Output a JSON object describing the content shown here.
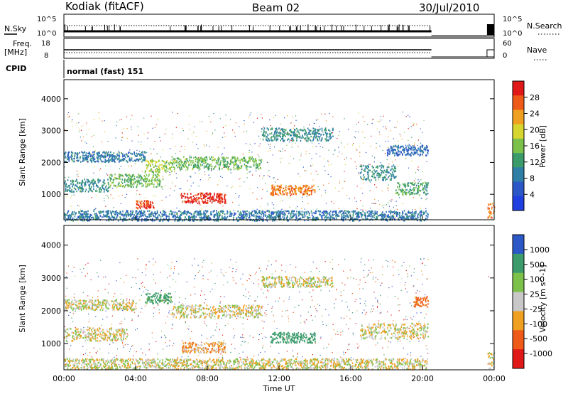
{
  "header": {
    "station": "Kodiak (fitACF)",
    "beam": "Beam 02",
    "date": "30/Jul/2010"
  },
  "top_panels": {
    "nsky_label": "N.Sky",
    "nsearch_label": "N.Search",
    "noise_ticks": [
      "10^5",
      "10^0"
    ],
    "noise_right_ticks": [
      "10^5",
      "10^0"
    ],
    "freq_label": "Freq.",
    "freq_unit": "[MHz]",
    "freq_ticks": [
      "18",
      "8"
    ],
    "nave_label": "Nave",
    "nave_ticks": [
      "60",
      "0"
    ],
    "cpid_label": "CPID",
    "cpid_text": "normal (fast) 151"
  },
  "chart_data": [
    {
      "type": "heatmap",
      "name": "power",
      "ylabel": "Slant Range [km]",
      "xlabel": "",
      "colorbar_label": "Power [dB]",
      "colorbar_ticks": [
        "28",
        "24",
        "20",
        "16",
        "12",
        "8",
        "4"
      ],
      "colorbar_range": [
        0,
        30
      ],
      "ylim": [
        200,
        4600
      ],
      "yticks": [
        "4000",
        "3000",
        "2000",
        "1000"
      ],
      "xlim_hours": [
        0,
        24
      ],
      "colors": [
        "#1f3fe0",
        "#2c57c7",
        "#2f7fa6",
        "#3b9b6b",
        "#7cc24a",
        "#d7d62e",
        "#f0a020",
        "#ef5a18",
        "#e01818"
      ],
      "echo_bands": [
        {
          "start_h": 0.0,
          "end_h": 2.5,
          "range_km": 1300,
          "width_km": 250,
          "value": 10
        },
        {
          "start_h": 2.5,
          "end_h": 5.5,
          "range_km": 1450,
          "width_km": 250,
          "value": 14
        },
        {
          "start_h": 0.0,
          "end_h": 4.5,
          "range_km": 2200,
          "width_km": 200,
          "value": 8
        },
        {
          "start_h": 4.5,
          "end_h": 6.0,
          "range_km": 1900,
          "width_km": 250,
          "value": 16
        },
        {
          "start_h": 6.0,
          "end_h": 11.0,
          "range_km": 2000,
          "width_km": 250,
          "value": 14
        },
        {
          "start_h": 11.0,
          "end_h": 15.0,
          "range_km": 2900,
          "width_km": 250,
          "value": 10
        },
        {
          "start_h": 4.0,
          "end_h": 5.0,
          "range_km": 700,
          "width_km": 150,
          "value": 26
        },
        {
          "start_h": 6.5,
          "end_h": 9.0,
          "range_km": 900,
          "width_km": 200,
          "value": 28
        },
        {
          "start_h": 11.5,
          "end_h": 14.0,
          "range_km": 1150,
          "width_km": 200,
          "value": 24
        },
        {
          "start_h": 16.5,
          "end_h": 18.5,
          "range_km": 1700,
          "width_km": 300,
          "value": 10
        },
        {
          "start_h": 18.5,
          "end_h": 20.3,
          "range_km": 1200,
          "width_km": 250,
          "value": 12
        },
        {
          "start_h": 18.0,
          "end_h": 20.3,
          "range_km": 2400,
          "width_km": 200,
          "value": 6
        },
        {
          "start_h": 0.0,
          "end_h": 20.3,
          "range_km": 350,
          "width_km": 200,
          "value": 8
        },
        {
          "start_h": 23.6,
          "end_h": 24.0,
          "range_km": 500,
          "width_km": 300,
          "value": 24
        }
      ]
    },
    {
      "type": "heatmap",
      "name": "velocity",
      "ylabel": "Slant Range [km]",
      "xlabel": "Time UT",
      "colorbar_label": "Velocity [m s^-1]",
      "colorbar_ticks": [
        "1000",
        "500",
        "100",
        "25",
        "-25",
        "-100",
        "-500",
        "-1000"
      ],
      "colorbar_range": [
        -1000,
        1000
      ],
      "ylim": [
        200,
        4600
      ],
      "yticks": [
        "4000",
        "3000",
        "2000",
        "1000"
      ],
      "xticks": [
        "00:00",
        "04:00",
        "08:00",
        "12:00",
        "16:00",
        "20:00",
        "00:00"
      ],
      "xlim_hours": [
        0,
        24
      ],
      "colors": [
        "#e01818",
        "#ef5a18",
        "#f0a020",
        "#c8c8c8",
        "#7cc24a",
        "#3b9b6b",
        "#2c57c7"
      ],
      "echo_bands": [
        {
          "start_h": 0.0,
          "end_h": 3.5,
          "range_km": 1300,
          "width_km": 250,
          "value": 0
        },
        {
          "start_h": 0.0,
          "end_h": 4.0,
          "range_km": 2200,
          "width_km": 200,
          "value": 0
        },
        {
          "start_h": 4.5,
          "end_h": 6.0,
          "range_km": 2400,
          "width_km": 200,
          "value": 150
        },
        {
          "start_h": 6.0,
          "end_h": 11.0,
          "range_km": 2000,
          "width_km": 250,
          "value": 0
        },
        {
          "start_h": 11.0,
          "end_h": 15.0,
          "range_km": 2900,
          "width_km": 200,
          "value": 0
        },
        {
          "start_h": 6.5,
          "end_h": 9.0,
          "range_km": 900,
          "width_km": 200,
          "value": -60
        },
        {
          "start_h": 11.5,
          "end_h": 14.0,
          "range_km": 1200,
          "width_km": 200,
          "value": 300
        },
        {
          "start_h": 16.5,
          "end_h": 20.3,
          "range_km": 1400,
          "width_km": 300,
          "value": 0
        },
        {
          "start_h": 19.5,
          "end_h": 20.3,
          "range_km": 2300,
          "width_km": 200,
          "value": -150
        },
        {
          "start_h": 0.0,
          "end_h": 20.3,
          "range_km": 400,
          "width_km": 200,
          "value": 0
        },
        {
          "start_h": 23.6,
          "end_h": 24.0,
          "range_km": 500,
          "width_km": 300,
          "value": 0
        }
      ]
    }
  ],
  "noise_series": {
    "x_hours_end": 20.5,
    "last_start_h": 23.6,
    "gap_start_h": 20.5
  }
}
